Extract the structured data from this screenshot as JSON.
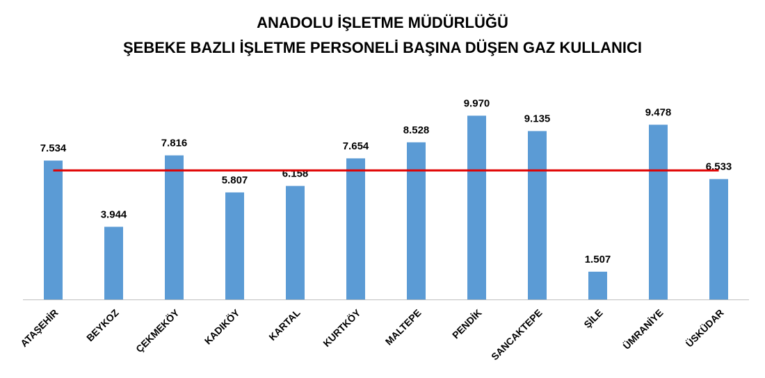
{
  "chart_data": {
    "type": "bar",
    "title": "ANADOLU İŞLETME MÜDÜRLÜĞÜ",
    "subtitle": "ŞEBEKE BAZLI İŞLETME PERSONELİ BAŞINA DÜŞEN GAZ KULLANICI",
    "categories": [
      "ATAŞEHİR",
      "BEYKOZ",
      "ÇEKMEKÖY",
      "KADIKÖY",
      "KARTAL",
      "KURTKÖY",
      "MALTEPE",
      "PENDİK",
      "SANCAKTEPE",
      "ŞİLE",
      "ÜMRANİYE",
      "ÜSKÜDAR"
    ],
    "values": [
      7534,
      3944,
      7816,
      5807,
      6158,
      7654,
      8528,
      9970,
      9135,
      1507,
      9478,
      6533
    ],
    "value_labels": [
      "7.534",
      "3.944",
      "7.816",
      "5.807",
      "6.158",
      "7.654",
      "8.528",
      "9.970",
      "9.135",
      "1.507",
      "9.478",
      "6.533"
    ],
    "average_line": 7000,
    "ylim": [
      0,
      10000
    ],
    "grid": false,
    "legend": "none",
    "colors": {
      "bar": "#5b9bd5",
      "average_line": "#e00000",
      "axis": "#bfbfbf"
    }
  }
}
